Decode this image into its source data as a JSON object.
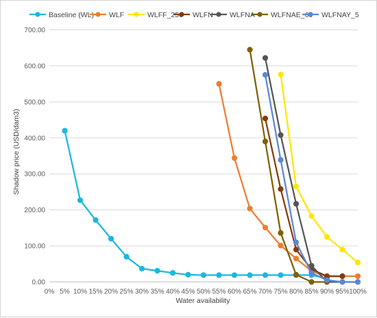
{
  "chart_data": {
    "type": "line",
    "title": "",
    "xlabel": "Water availability",
    "ylabel": "Shadow price (USD/dam3)",
    "categories": [
      "0%",
      "5%",
      "10%",
      "15%",
      "20%",
      "25%",
      "30%",
      "35%",
      "40%",
      "45%",
      "50%",
      "55%",
      "60%",
      "65%",
      "70%",
      "75%",
      "80%",
      "85%",
      "90%",
      "95%",
      "100%"
    ],
    "x_tick_labels": [
      "0%",
      "5%",
      "10%",
      "15%",
      "20%",
      "25%",
      "30%",
      "35%",
      "40%",
      "45%",
      "50%",
      "55%",
      "60%",
      "65%",
      "70%",
      "75%",
      "80%",
      "85%",
      "90%",
      "95%",
      "100%"
    ],
    "y_tick_labels": [
      "0.00",
      "100.00",
      "200.00",
      "300.00",
      "400.00",
      "500.00",
      "600.00",
      "700.00"
    ],
    "ylim": [
      0,
      700
    ],
    "grid": "horizontal",
    "legend_position": "top",
    "series": [
      {
        "name": "Baseline (WL)",
        "color": "#19b8e0",
        "values": [
          null,
          420,
          227,
          172,
          120,
          70,
          37,
          31,
          25,
          20,
          19,
          19,
          19,
          19,
          19,
          19,
          19,
          19,
          10,
          null,
          null
        ]
      },
      {
        "name": "WLF",
        "color": "#ed7d31",
        "values": [
          null,
          null,
          null,
          null,
          null,
          null,
          null,
          null,
          null,
          null,
          null,
          550,
          344,
          204,
          151,
          101,
          65,
          30,
          15,
          16,
          16
        ]
      },
      {
        "name": "WLFF_250",
        "color": "#ffe600",
        "values": [
          null,
          null,
          null,
          null,
          null,
          null,
          null,
          null,
          null,
          null,
          null,
          null,
          null,
          null,
          null,
          576,
          265,
          183,
          125,
          90,
          54
        ]
      },
      {
        "name": "WLFN",
        "color": "#843c0c",
        "values": [
          null,
          null,
          null,
          null,
          null,
          null,
          null,
          null,
          null,
          null,
          null,
          null,
          null,
          null,
          454,
          258,
          90,
          35,
          16,
          16,
          null
        ]
      },
      {
        "name": "WLFNA",
        "color": "#555555",
        "values": [
          null,
          null,
          null,
          null,
          null,
          null,
          null,
          null,
          null,
          null,
          null,
          null,
          null,
          null,
          622,
          408,
          217,
          45,
          0,
          0,
          0
        ]
      },
      {
        "name": "WLFNAE_60",
        "color": "#7f6000",
        "values": [
          null,
          null,
          null,
          null,
          null,
          null,
          null,
          null,
          null,
          null,
          null,
          null,
          null,
          645,
          390,
          136,
          20,
          0,
          0,
          null,
          null
        ]
      },
      {
        "name": "WLFNAY_5",
        "color": "#5b87d6",
        "values": [
          null,
          null,
          null,
          null,
          null,
          null,
          null,
          null,
          null,
          null,
          null,
          null,
          null,
          null,
          575,
          339,
          110,
          25,
          5,
          0,
          0
        ]
      }
    ]
  }
}
